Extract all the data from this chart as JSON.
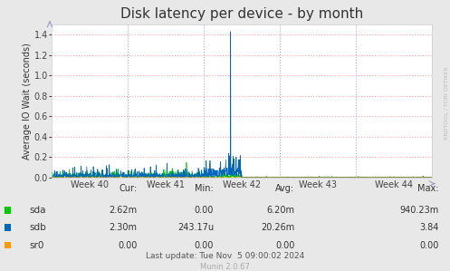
{
  "title": "Disk latency per device - by month",
  "ylabel": "Average IO Wait (seconds)",
  "background_color": "#e8e8e8",
  "plot_bg_color": "#ffffff",
  "grid_color_h": "#ffaaaa",
  "grid_color_v": "#aaaacc",
  "ylim": [
    0,
    1.5
  ],
  "yticks": [
    0.0,
    0.2,
    0.4,
    0.6,
    0.8,
    1.0,
    1.2,
    1.4
  ],
  "xlim": [
    0,
    5
  ],
  "week_positions": [
    0.5,
    1.5,
    2.5,
    3.5,
    4.5
  ],
  "week_labels": [
    "Week 40",
    "Week 41",
    "Week 42",
    "Week 43",
    "Week 44"
  ],
  "legend": [
    {
      "label": "sda",
      "color": "#00cc00"
    },
    {
      "label": "sdb",
      "color": "#0066bb"
    },
    {
      "label": "sr0",
      "color": "#ff9900"
    }
  ],
  "stats_header": [
    "Cur:",
    "Min:",
    "Avg:",
    "Max:"
  ],
  "stats": [
    [
      "2.62m",
      "0.00",
      "6.20m",
      "940.23m"
    ],
    [
      "2.30m",
      "243.17u",
      "20.26m",
      "3.84"
    ],
    [
      "0.00",
      "0.00",
      "0.00",
      "0.00"
    ]
  ],
  "last_update": "Last update: Tue Nov  5 09:00:02 2024",
  "munin_version": "Munin 2.0.67",
  "watermark": "RRDTOOL / TOBI OETIKER",
  "title_fontsize": 11,
  "axis_label_fontsize": 7,
  "tick_fontsize": 7,
  "legend_fontsize": 7.5,
  "stats_fontsize": 7,
  "last_update_fontsize": 6.5,
  "munin_fontsize": 6
}
